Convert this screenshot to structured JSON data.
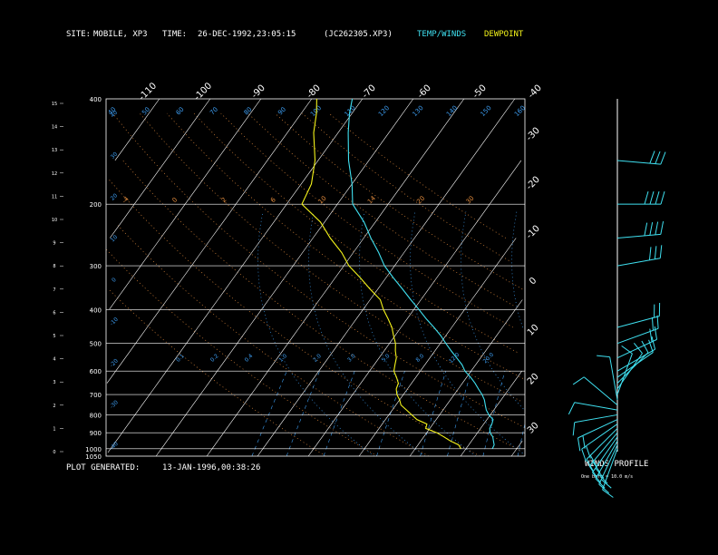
{
  "header": {
    "site_label": "SITE:",
    "site_value": "MOBILE, XP3",
    "time_label": "TIME:",
    "time_value": "26-DEC-1992,23:05:15",
    "file_id": "(JC262305.XP3)",
    "legend_temp_winds": "TEMP/WINDS",
    "legend_dewpoint": "DEWPOINT"
  },
  "footer": {
    "plot_generated_label": "PLOT GENERATED:",
    "plot_generated_value": "13-JAN-1996,00:38:26",
    "winds_profile_title": "WINDS PROFILE",
    "barb_note": "One barb = 10.0 m/s"
  },
  "colors": {
    "background": "#000000",
    "temperature": "#3fe0f0",
    "dewpoint": "#f4f41a",
    "grid": "#ffffff",
    "dry_adiabat": "#e08a3c",
    "moist_adiabat": "#3c9cf0",
    "mixing_ratio": "#3c9cf0",
    "wind_barb": "#3fe0f0"
  },
  "chart_data": {
    "type": "skew-t",
    "title": "",
    "pressure_levels": [
      400,
      200,
      300,
      400,
      500,
      600,
      700,
      800,
      900,
      1000,
      1050
    ],
    "pressure_label_texts": [
      "400",
      "200",
      "300",
      "400",
      "500",
      "600",
      "700",
      "800",
      "900",
      "1000",
      "1050"
    ],
    "height_km_ticks": [
      "15",
      "14",
      "13",
      "12",
      "11",
      "10",
      "9",
      "8",
      "7",
      "6",
      "5",
      "4",
      "3",
      "2",
      "1",
      "0"
    ],
    "top_temp_labels": [
      "-110",
      "-100",
      "-90",
      "-80",
      "-70",
      "-60",
      "-50",
      "-40"
    ],
    "right_temp_labels": [
      "-30",
      "-20",
      "-10",
      "0",
      "10",
      "20",
      "30"
    ],
    "upper_blue_labels": [
      "40",
      "50",
      "60",
      "70",
      "80",
      "90",
      "100",
      "110",
      "120",
      "130",
      "140",
      "150",
      "160"
    ],
    "upper_left_blue_labels": [
      "40",
      "30",
      "20",
      "10",
      "0",
      "-10",
      "-20",
      "-30",
      "-40"
    ],
    "theta_orange_labels": [
      "-4",
      "0",
      "2",
      "6",
      "10",
      "14",
      "20",
      "30"
    ],
    "mixing_ratio_labels": [
      "0.1",
      "0.2",
      "0.4",
      "1.0",
      "2.0",
      "3.0",
      "5.0",
      "8.0",
      "12.0",
      "20.0"
    ],
    "temperature_profile": [
      [
        1000,
        5.2
      ],
      [
        975,
        5.0
      ],
      [
        950,
        4.3
      ],
      [
        925,
        3.6
      ],
      [
        900,
        2.5
      ],
      [
        875,
        1.8
      ],
      [
        850,
        1.6
      ],
      [
        825,
        1.2
      ],
      [
        800,
        -0.3
      ],
      [
        775,
        -1.5
      ],
      [
        750,
        -2.4
      ],
      [
        725,
        -3.3
      ],
      [
        700,
        -4.5
      ],
      [
        675,
        -6.0
      ],
      [
        650,
        -7.5
      ],
      [
        625,
        -9.2
      ],
      [
        600,
        -11.2
      ],
      [
        575,
        -12.7
      ],
      [
        550,
        -14.7
      ],
      [
        525,
        -16.8
      ],
      [
        500,
        -18.9
      ],
      [
        475,
        -21.0
      ],
      [
        450,
        -23.5
      ],
      [
        425,
        -26.3
      ],
      [
        400,
        -29.0
      ],
      [
        375,
        -32.0
      ],
      [
        350,
        -35.1
      ],
      [
        325,
        -38.5
      ],
      [
        300,
        -42.0
      ],
      [
        275,
        -45.0
      ],
      [
        250,
        -48.6
      ],
      [
        225,
        -52.2
      ],
      [
        200,
        -57.0
      ],
      [
        175,
        -60.0
      ],
      [
        150,
        -64.0
      ],
      [
        125,
        -68.0
      ],
      [
        110,
        -70.5
      ],
      [
        100,
        -72.0
      ]
    ],
    "dewpoint_profile": [
      [
        1000,
        -1.0
      ],
      [
        975,
        -2.0
      ],
      [
        950,
        -4.2
      ],
      [
        925,
        -6.0
      ],
      [
        900,
        -8.0
      ],
      [
        875,
        -10.8
      ],
      [
        850,
        -11.2
      ],
      [
        825,
        -13.8
      ],
      [
        800,
        -15.5
      ],
      [
        775,
        -17.2
      ],
      [
        750,
        -19.0
      ],
      [
        725,
        -20.0
      ],
      [
        700,
        -21.3
      ],
      [
        675,
        -22.2
      ],
      [
        650,
        -22.6
      ],
      [
        625,
        -23.8
      ],
      [
        600,
        -25.2
      ],
      [
        575,
        -25.9
      ],
      [
        550,
        -26.6
      ],
      [
        525,
        -27.8
      ],
      [
        500,
        -28.8
      ],
      [
        475,
        -30.3
      ],
      [
        450,
        -31.8
      ],
      [
        425,
        -33.8
      ],
      [
        400,
        -36.0
      ],
      [
        375,
        -38.0
      ],
      [
        350,
        -41.5
      ],
      [
        325,
        -45.0
      ],
      [
        300,
        -49.0
      ],
      [
        275,
        -52.3
      ],
      [
        250,
        -56.6
      ],
      [
        225,
        -60.8
      ],
      [
        200,
        -67.0
      ],
      [
        175,
        -68.0
      ],
      [
        150,
        -70.6
      ],
      [
        125,
        -74.8
      ],
      [
        110,
        -77.0
      ],
      [
        100,
        -79.0
      ]
    ],
    "wind_profile": [
      {
        "pressure": 1000,
        "dir": 20,
        "speed": 10
      },
      {
        "pressure": 975,
        "dir": 25,
        "speed": 20
      },
      {
        "pressure": 950,
        "dir": 30,
        "speed": 20
      },
      {
        "pressure": 925,
        "dir": 35,
        "speed": 20
      },
      {
        "pressure": 900,
        "dir": 40,
        "speed": 20
      },
      {
        "pressure": 875,
        "dir": 45,
        "speed": 20
      },
      {
        "pressure": 850,
        "dir": 55,
        "speed": 20
      },
      {
        "pressure": 825,
        "dir": 65,
        "speed": 20
      },
      {
        "pressure": 800,
        "dir": 80,
        "speed": 10
      },
      {
        "pressure": 775,
        "dir": 100,
        "speed": 10
      },
      {
        "pressure": 750,
        "dir": 130,
        "speed": 10
      },
      {
        "pressure": 725,
        "dir": 170,
        "speed": 10
      },
      {
        "pressure": 700,
        "dir": 200,
        "speed": 10
      },
      {
        "pressure": 675,
        "dir": 215,
        "speed": 10
      },
      {
        "pressure": 650,
        "dir": 225,
        "speed": 10
      },
      {
        "pressure": 625,
        "dir": 235,
        "speed": 10
      },
      {
        "pressure": 600,
        "dir": 240,
        "speed": 10
      },
      {
        "pressure": 550,
        "dir": 245,
        "speed": 20
      },
      {
        "pressure": 500,
        "dir": 250,
        "speed": 20
      },
      {
        "pressure": 450,
        "dir": 255,
        "speed": 20
      },
      {
        "pressure": 300,
        "dir": 260,
        "speed": 30
      },
      {
        "pressure": 250,
        "dir": 265,
        "speed": 40
      },
      {
        "pressure": 200,
        "dir": 270,
        "speed": 40
      },
      {
        "pressure": 150,
        "dir": 275,
        "speed": 30
      }
    ]
  }
}
